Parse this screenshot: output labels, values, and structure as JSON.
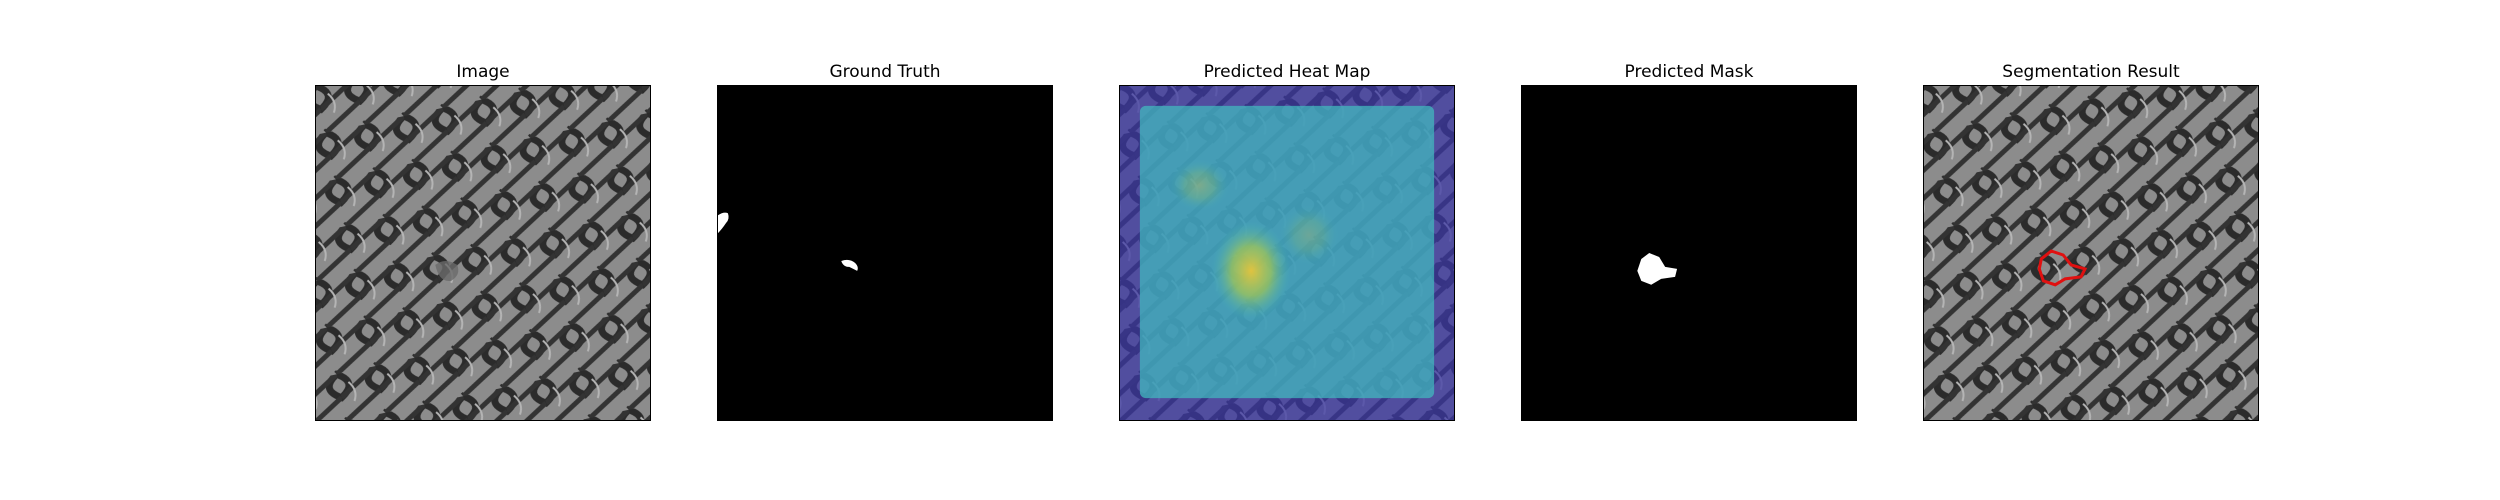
{
  "figure": {
    "panels": [
      {
        "title": "Image"
      },
      {
        "title": "Ground Truth"
      },
      {
        "title": "Predicted Heat Map"
      },
      {
        "title": "Predicted Mask"
      },
      {
        "title": "Segmentation Result"
      }
    ],
    "colors": {
      "background": "#ffffff",
      "texture_base": "#8a8a8a",
      "texture_line": "#2e2e2e",
      "mask_bg": "#000000",
      "mask_fg": "#ffffff",
      "heat_low": "#3a36a6",
      "heat_mid": "#42b8bd",
      "heat_high": "#e8c53a",
      "contour": "#e01010"
    }
  }
}
